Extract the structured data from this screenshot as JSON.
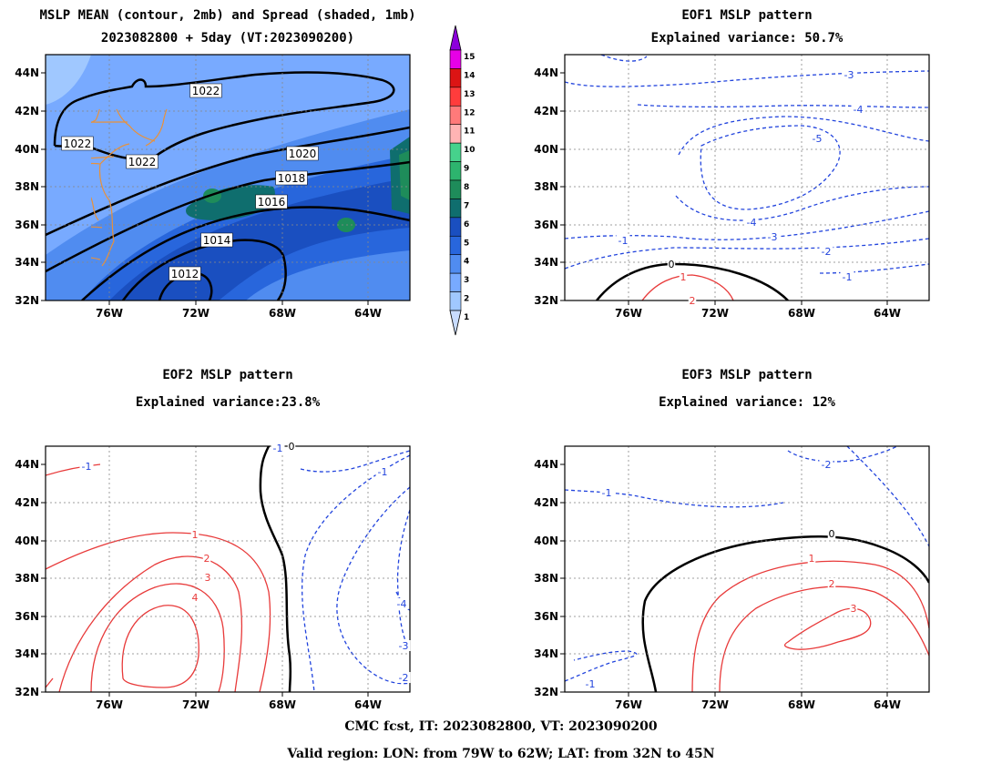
{
  "panels": [
    {
      "id": "mean",
      "title1": "MSLP MEAN (contour, 2mb) and Spread (shaded, 1mb)",
      "title2": "2023082800 + 5day (VT:2023090200)"
    },
    {
      "id": "eof1",
      "title1": "EOF1 MSLP pattern",
      "title2": "Explained variance: 50.7%"
    },
    {
      "id": "eof2",
      "title1": "EOF2 MSLP pattern",
      "title2": "Explained variance:23.8%"
    },
    {
      "id": "eof3",
      "title1": "EOF3 MSLP pattern",
      "title2": "Explained variance: 12%"
    }
  ],
  "axes": {
    "lat_labels": [
      "44N",
      "42N",
      "40N",
      "38N",
      "36N",
      "34N",
      "32N"
    ],
    "lon_labels": [
      "76W",
      "72W",
      "68W",
      "64W"
    ]
  },
  "colorbar": {
    "labels": [
      "1",
      "2",
      "3",
      "4",
      "5",
      "6",
      "7",
      "8",
      "9",
      "10",
      "11",
      "12",
      "13",
      "14",
      "15"
    ],
    "colors": [
      "#c8dcff",
      "#a0c8ff",
      "#78aaff",
      "#508cf0",
      "#2866dc",
      "#1a4fc0",
      "#0f6e6e",
      "#1e8c5a",
      "#2db46e",
      "#46d28c",
      "#ffb4b4",
      "#ff7a7a",
      "#ff3c3c",
      "#dc1414",
      "#e600e6",
      "#8c00dc"
    ]
  },
  "contour_labels": {
    "mean": [
      "1022",
      "1022",
      "1022",
      "1020",
      "1018",
      "1016",
      "1014",
      "1012"
    ],
    "eof1": [
      "-3",
      "-4",
      "-5",
      "-4",
      "-3",
      "-2",
      "-1",
      "-1",
      "0",
      "1",
      "2"
    ],
    "eof2": [
      "-1",
      "-1",
      "0",
      "1",
      "2",
      "3",
      "4",
      "-3",
      "-2",
      "-4",
      "-1"
    ],
    "eof3": [
      "-2",
      "-1",
      "0",
      "1",
      "2",
      "3",
      "-1"
    ]
  },
  "footer": {
    "line1": "CMC fcst, IT: 2023082800, VT: 2023090200",
    "line2": "Valid region: LON: from 79W to 62W; LAT: from 32N to 45N"
  },
  "colors": {
    "coast": "#e8913a",
    "negative": "#2244dd",
    "positive": "#e83a3a",
    "zero": "#000000",
    "grid": "#888888"
  }
}
